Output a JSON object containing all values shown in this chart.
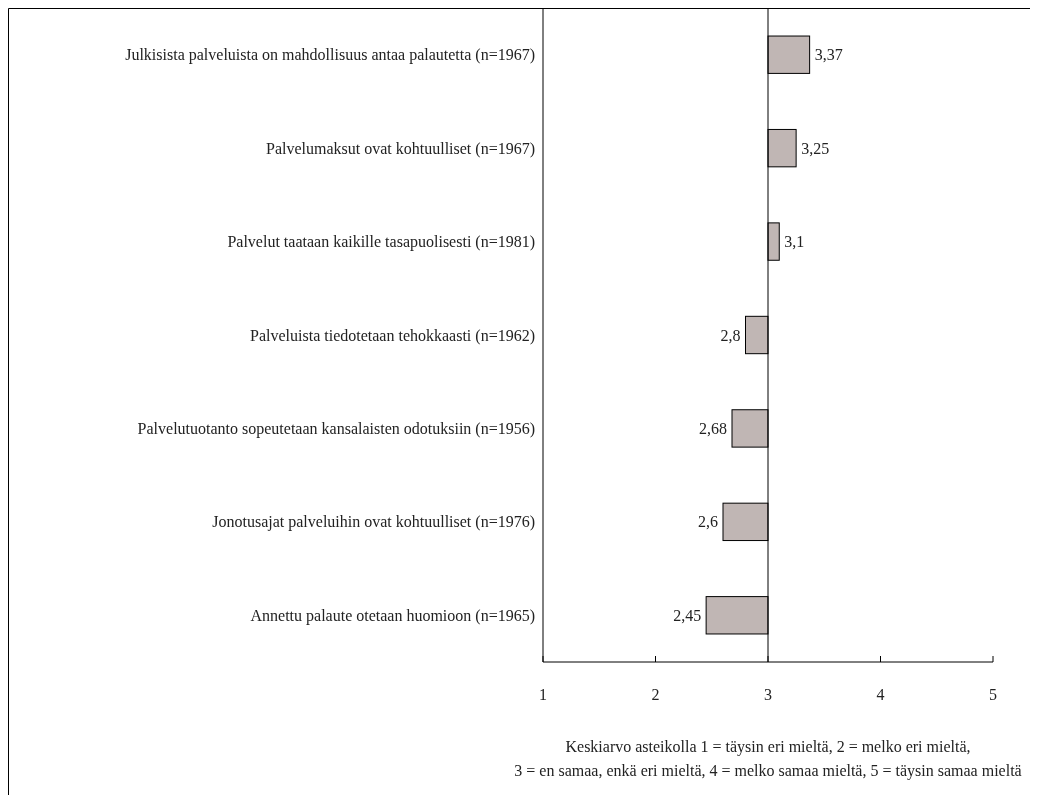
{
  "chart_data": {
    "type": "bar",
    "orientation": "horizontal",
    "categories": [
      "Julkisista palveluista on mahdollisuus antaa palautetta (n=1967)",
      "Palvelumaksut ovat kohtuulliset (n=1967)",
      "Palvelut taataan kaikille tasapuolisesti (n=1981)",
      "Palveluista tiedotetaan tehokkaasti (n=1962)",
      "Palvelutuotanto sopeutetaan kansalaisten odotuksiin (n=1956)",
      "Jonotusajat palveluihin ovat kohtuulliset (n=1976)",
      "Annettu palaute otetaan huomioon (n=1965)"
    ],
    "base": [
      3,
      3,
      3,
      3,
      3,
      3,
      3
    ],
    "values": [
      0.37,
      0.25,
      0.1,
      -0.2,
      -0.32,
      -0.4,
      -0.55
    ],
    "value_labels": [
      "3,37",
      "3,25",
      "3,1",
      "2,8",
      "2,68",
      "2,6",
      "2,45"
    ],
    "color": "#c0b6b4",
    "xlim": [
      1,
      5
    ],
    "xticks": [
      1,
      2,
      3,
      4,
      5
    ],
    "ref_lines": [
      {
        "axis": "x",
        "value": 3,
        "color": "#000000"
      }
    ],
    "annotations": [
      "Keskiarvo asteikolla 1 = täysin eri mieltä, 2 = melko eri mieltä,",
      "3 = en samaa, enkä eri mieltä, 4 = melko samaa mieltä, 5 = täysin samaa mieltä"
    ]
  }
}
